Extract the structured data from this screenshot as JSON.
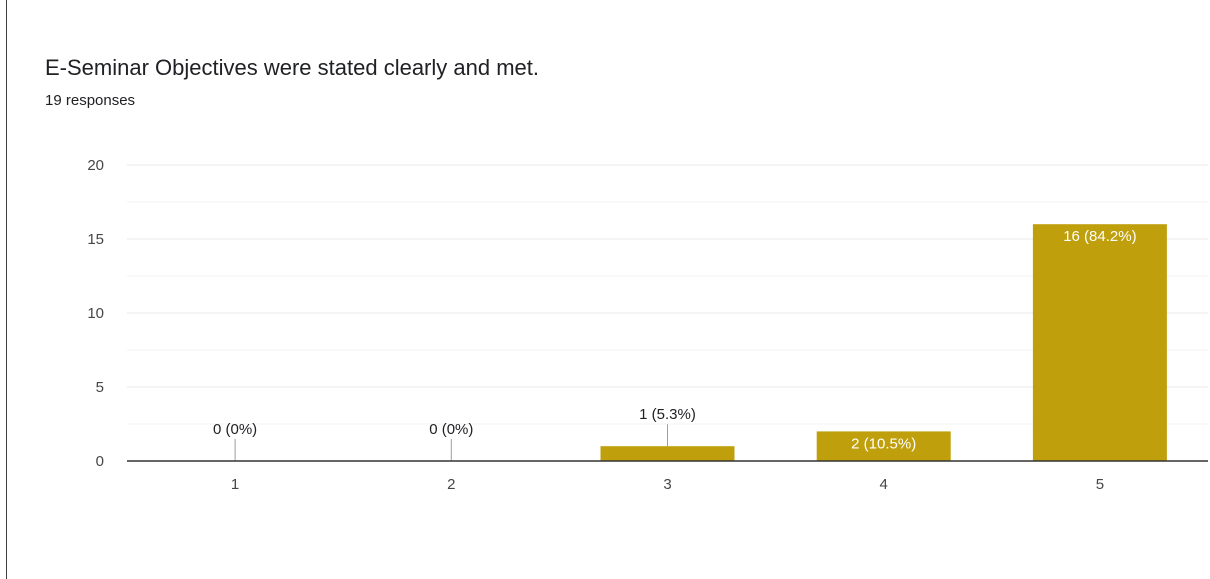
{
  "question": {
    "title": "E-Seminar Objectives were stated clearly and met.",
    "responses": "19 responses"
  },
  "colors": {
    "bar": "#bf9f0c",
    "grid": "#e8e8e8",
    "axis": "#333333"
  },
  "chart_data": {
    "type": "bar",
    "categories": [
      "1",
      "2",
      "3",
      "4",
      "5"
    ],
    "values": [
      0,
      0,
      1,
      2,
      16
    ],
    "data_labels": [
      "0 (0%)",
      "0 (0%)",
      "1 (5.3%)",
      "2 (10.5%)",
      "16 (84.2%)"
    ],
    "ylim": [
      0,
      20
    ],
    "yticks": [
      0,
      5,
      10,
      15,
      20
    ],
    "grid": true
  }
}
